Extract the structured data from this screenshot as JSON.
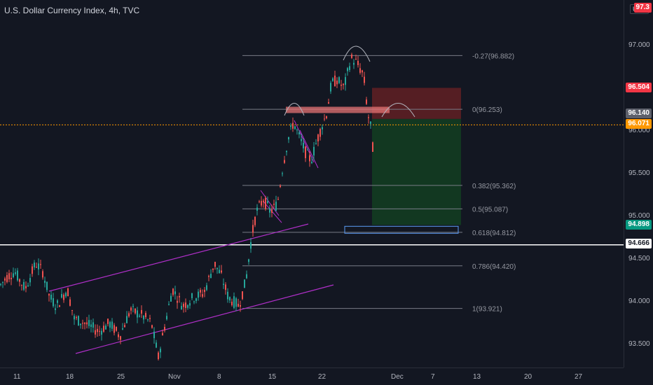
{
  "header": {
    "title": "U.S. Dollar Currency Index, 4h, TVC",
    "currency": "USD"
  },
  "colors": {
    "up": "#26a69a",
    "down": "#ef5350",
    "background": "#131722",
    "channel": "#b02fc9",
    "fib": "#787b86",
    "stop_zone": "#5d1f24",
    "target_zone": "#123a22"
  },
  "price_tags": {
    "top": "97.3",
    "stop": "96.504",
    "entry": "96.140",
    "current": "96.071",
    "target": "94.898",
    "line": "94.666"
  },
  "fib_labels": [
    {
      "label": "-0.27(96.882)",
      "value": 96.882
    },
    {
      "label": "0(96.253)",
      "value": 96.253
    },
    {
      "label": "0.382(95.362)",
      "value": 95.362
    },
    {
      "label": "0.5(95.087)",
      "value": 95.087
    },
    {
      "label": "0.618(94.812)",
      "value": 94.812
    },
    {
      "label": "0.786(94.420)",
      "value": 94.42
    },
    {
      "label": "1(93.921)",
      "value": 93.921
    }
  ],
  "chart_data": {
    "type": "candlestick",
    "title": "U.S. Dollar Currency Index, 4h, TVC",
    "y_ticks": [
      "97.000",
      "96.500",
      "96.000",
      "95.500",
      "95.000",
      "94.500",
      "94.000",
      "93.500"
    ],
    "y_tick_values": [
      97.0,
      96.5,
      96.0,
      95.5,
      95.0,
      94.5,
      94.0,
      93.5
    ],
    "x_ticks": [
      "11",
      "18",
      "25",
      "Nov",
      "8",
      "15",
      "22",
      "Dec",
      "7",
      "13",
      "20",
      "27"
    ],
    "ylim": [
      93.3,
      97.4
    ],
    "price_path": [
      [
        0,
        94.2
      ],
      [
        10,
        94.3
      ],
      [
        20,
        94.35
      ],
      [
        35,
        94.15
      ],
      [
        50,
        94.45
      ],
      [
        60,
        94.35
      ],
      [
        70,
        94.05
      ],
      [
        80,
        93.95
      ],
      [
        95,
        94.15
      ],
      [
        105,
        93.8
      ],
      [
        120,
        93.75
      ],
      [
        140,
        93.65
      ],
      [
        155,
        93.75
      ],
      [
        170,
        93.6
      ],
      [
        185,
        93.9
      ],
      [
        200,
        93.85
      ],
      [
        215,
        93.75
      ],
      [
        225,
        93.35
      ],
      [
        235,
        93.75
      ],
      [
        245,
        94.15
      ],
      [
        260,
        93.95
      ],
      [
        275,
        94.05
      ],
      [
        290,
        94.1
      ],
      [
        305,
        94.45
      ],
      [
        315,
        94.3
      ],
      [
        325,
        94.05
      ],
      [
        340,
        93.95
      ],
      [
        350,
        94.25
      ],
      [
        358,
        94.75
      ],
      [
        365,
        95.05
      ],
      [
        375,
        95.2
      ],
      [
        385,
        95.05
      ],
      [
        395,
        95.15
      ],
      [
        402,
        95.55
      ],
      [
        410,
        95.9
      ],
      [
        418,
        96.1
      ],
      [
        425,
        95.95
      ],
      [
        435,
        95.75
      ],
      [
        443,
        95.65
      ],
      [
        450,
        95.85
      ],
      [
        458,
        96.05
      ],
      [
        465,
        96.2
      ],
      [
        472,
        96.55
      ],
      [
        480,
        96.6
      ],
      [
        490,
        96.5
      ],
      [
        500,
        96.85
      ],
      [
        508,
        96.8
      ],
      [
        518,
        96.65
      ],
      [
        524,
        96.2
      ],
      [
        528,
        96.05
      ],
      [
        531,
        95.8
      ]
    ],
    "fib_levels": [
      96.882,
      96.253,
      95.362,
      95.087,
      94.812,
      94.42,
      93.921
    ],
    "horizontal_line": 94.666,
    "position": {
      "entry": 96.14,
      "stop": 96.504,
      "target": 94.898
    }
  }
}
